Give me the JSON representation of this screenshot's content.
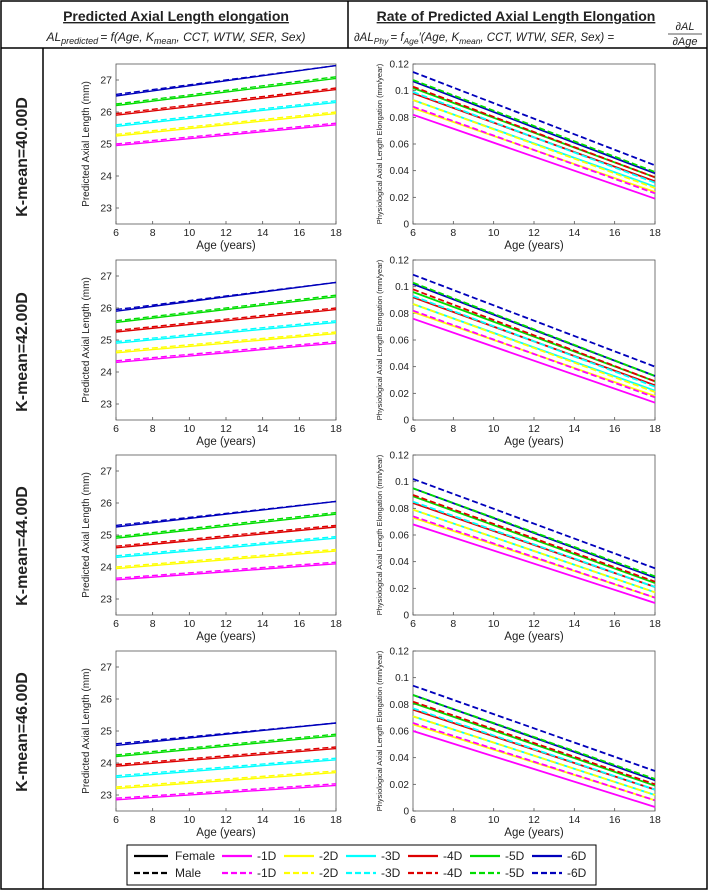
{
  "header": {
    "left_title": "Predicted Axial Length elongation",
    "left_formula": {
      "lhs": "AL",
      "lhs_sub": "predicted",
      "rhs": "= f(Age, K",
      "kmean_sub": "mean",
      "rest": ", CCT, WTW, SER, Sex)"
    },
    "right_title": "Rate of Predicted Axial Length Elongation",
    "right_formula": {
      "lhs": "∂AL",
      "lhs_sub": "Phy",
      "eq": "= f",
      "f_sub": "Age",
      "rest": "′(Age, K",
      "kmean_sub": "mean",
      "rest2": ", CCT, WTW, SER, Sex) =",
      "frac_num": "∂AL",
      "frac_den": "∂Age"
    }
  },
  "rows": [
    {
      "label": "K-mean=40.00D"
    },
    {
      "label": "K-mean=42.00D"
    },
    {
      "label": "K-mean=44.00D"
    },
    {
      "label": "K-mean=46.00D"
    }
  ],
  "legend": {
    "female_label": "Female",
    "male_label": "Male",
    "series_labels": [
      "-1D",
      "-2D",
      "-3D",
      "-4D",
      "-5D",
      "-6D"
    ],
    "colors": [
      "#ff00ff",
      "#ffff00",
      "#00ffff",
      "#dd0000",
      "#00dd00",
      "#0000bb"
    ]
  },
  "chart_data": [
    {
      "type": "line",
      "panel": "axial-length",
      "xlabel": "Age (years)",
      "ylabel": "Predicted Axial Length (mm)",
      "xlim": [
        6,
        18
      ],
      "ylim": [
        22.5,
        27.5
      ],
      "xticks": [
        6,
        8,
        10,
        12,
        14,
        16,
        18
      ],
      "yticks": [
        23,
        24,
        25,
        26,
        27
      ],
      "x": [
        6,
        18
      ],
      "female": [
        [
          24.95,
          25.6
        ],
        [
          25.25,
          25.95
        ],
        [
          25.55,
          26.3
        ],
        [
          25.9,
          26.7
        ],
        [
          26.2,
          27.05
        ],
        [
          26.5,
          27.45
        ]
      ],
      "male": [
        [
          25.0,
          25.65
        ],
        [
          25.3,
          26.0
        ],
        [
          25.6,
          26.35
        ],
        [
          25.95,
          26.75
        ],
        [
          26.25,
          27.1
        ],
        [
          26.55,
          27.45
        ]
      ]
    },
    {
      "type": "line",
      "panel": "elongation-rate",
      "xlabel": "Age (years)",
      "ylabel": "Physiological Axial Length Elongation (mm/year)",
      "xlim": [
        6,
        18
      ],
      "ylim": [
        0,
        0.12
      ],
      "xticks": [
        6,
        8,
        10,
        12,
        14,
        16,
        18
      ],
      "yticks": [
        0,
        0.02,
        0.04,
        0.06,
        0.08,
        0.1,
        0.12
      ],
      "x": [
        6,
        18
      ],
      "female": [
        [
          0.082,
          0.019
        ],
        [
          0.087,
          0.024
        ],
        [
          0.093,
          0.028
        ],
        [
          0.098,
          0.032
        ],
        [
          0.102,
          0.035
        ],
        [
          0.107,
          0.038
        ]
      ],
      "male": [
        [
          0.088,
          0.023
        ],
        [
          0.093,
          0.027
        ],
        [
          0.099,
          0.031
        ],
        [
          0.103,
          0.035
        ],
        [
          0.108,
          0.039
        ],
        [
          0.114,
          0.044
        ]
      ]
    },
    {
      "type": "line",
      "panel": "axial-length",
      "xlabel": "Age (years)",
      "ylabel": "Predicted Axial Length (mm)",
      "xlim": [
        6,
        18
      ],
      "ylim": [
        22.5,
        27.5
      ],
      "xticks": [
        6,
        8,
        10,
        12,
        14,
        16,
        18
      ],
      "yticks": [
        23,
        24,
        25,
        26,
        27
      ],
      "x": [
        6,
        18
      ],
      "female": [
        [
          24.3,
          24.9
        ],
        [
          24.6,
          25.2
        ],
        [
          24.9,
          25.55
        ],
        [
          25.25,
          25.95
        ],
        [
          25.55,
          26.35
        ],
        [
          25.9,
          26.8
        ]
      ],
      "male": [
        [
          24.35,
          24.95
        ],
        [
          24.65,
          25.25
        ],
        [
          24.95,
          25.6
        ],
        [
          25.3,
          26.0
        ],
        [
          25.6,
          26.4
        ],
        [
          25.95,
          26.8
        ]
      ]
    },
    {
      "type": "line",
      "panel": "elongation-rate",
      "xlabel": "Age (years)",
      "ylabel": "Physiological Axial Length Elongation (mm/year)",
      "xlim": [
        6,
        18
      ],
      "ylim": [
        0,
        0.12
      ],
      "xticks": [
        6,
        8,
        10,
        12,
        14,
        16,
        18
      ],
      "yticks": [
        0,
        0.02,
        0.04,
        0.06,
        0.08,
        0.1,
        0.12
      ],
      "x": [
        6,
        18
      ],
      "female": [
        [
          0.076,
          0.013
        ],
        [
          0.081,
          0.018
        ],
        [
          0.087,
          0.022
        ],
        [
          0.092,
          0.026
        ],
        [
          0.096,
          0.029
        ],
        [
          0.102,
          0.033
        ]
      ],
      "male": [
        [
          0.082,
          0.017
        ],
        [
          0.087,
          0.021
        ],
        [
          0.093,
          0.025
        ],
        [
          0.098,
          0.029
        ],
        [
          0.103,
          0.033
        ],
        [
          0.109,
          0.04
        ]
      ]
    },
    {
      "type": "line",
      "panel": "axial-length",
      "xlabel": "Age (years)",
      "ylabel": "Predicted Axial Length (mm)",
      "xlim": [
        6,
        18
      ],
      "ylim": [
        22.5,
        27.5
      ],
      "xticks": [
        6,
        8,
        10,
        12,
        14,
        16,
        18
      ],
      "yticks": [
        23,
        24,
        25,
        26,
        27
      ],
      "x": [
        6,
        18
      ],
      "female": [
        [
          23.6,
          24.1
        ],
        [
          23.95,
          24.5
        ],
        [
          24.3,
          24.9
        ],
        [
          24.6,
          25.25
        ],
        [
          24.9,
          25.65
        ],
        [
          25.25,
          26.05
        ]
      ],
      "male": [
        [
          23.65,
          24.15
        ],
        [
          24.0,
          24.55
        ],
        [
          24.35,
          24.95
        ],
        [
          24.65,
          25.3
        ],
        [
          24.95,
          25.7
        ],
        [
          25.3,
          26.05
        ]
      ]
    },
    {
      "type": "line",
      "panel": "elongation-rate",
      "xlabel": "Age (years)",
      "ylabel": "Physiological Axial Length Elongation (mm/year)",
      "xlim": [
        6,
        18
      ],
      "ylim": [
        0,
        0.12
      ],
      "xticks": [
        6,
        8,
        10,
        12,
        14,
        16,
        18
      ],
      "yticks": [
        0,
        0.02,
        0.04,
        0.06,
        0.08,
        0.1,
        0.12
      ],
      "x": [
        6,
        18
      ],
      "female": [
        [
          0.068,
          0.009
        ],
        [
          0.073,
          0.013
        ],
        [
          0.079,
          0.017
        ],
        [
          0.084,
          0.021
        ],
        [
          0.089,
          0.024
        ],
        [
          0.095,
          0.028
        ]
      ],
      "male": [
        [
          0.074,
          0.013
        ],
        [
          0.079,
          0.017
        ],
        [
          0.085,
          0.021
        ],
        [
          0.09,
          0.025
        ],
        [
          0.095,
          0.029
        ],
        [
          0.102,
          0.035
        ]
      ]
    },
    {
      "type": "line",
      "panel": "axial-length",
      "xlabel": "Age (years)",
      "ylabel": "Predicted Axial Length (mm)",
      "xlim": [
        6,
        18
      ],
      "ylim": [
        22.5,
        27.5
      ],
      "xticks": [
        6,
        8,
        10,
        12,
        14,
        16,
        18
      ],
      "yticks": [
        23,
        24,
        25,
        26,
        27
      ],
      "x": [
        6,
        18
      ],
      "female": [
        [
          22.85,
          23.3
        ],
        [
          23.2,
          23.7
        ],
        [
          23.55,
          24.1
        ],
        [
          23.9,
          24.45
        ],
        [
          24.2,
          24.85
        ],
        [
          24.55,
          25.25
        ]
      ],
      "male": [
        [
          22.9,
          23.35
        ],
        [
          23.25,
          23.75
        ],
        [
          23.6,
          24.15
        ],
        [
          23.95,
          24.5
        ],
        [
          24.25,
          24.9
        ],
        [
          24.6,
          25.25
        ]
      ]
    },
    {
      "type": "line",
      "panel": "elongation-rate",
      "xlabel": "Age (years)",
      "ylabel": "Physiological Axial Length Elongation (mm/year)",
      "xlim": [
        6,
        18
      ],
      "ylim": [
        0,
        0.12
      ],
      "xticks": [
        6,
        8,
        10,
        12,
        14,
        16,
        18
      ],
      "yticks": [
        0,
        0.02,
        0.04,
        0.06,
        0.08,
        0.1,
        0.12
      ],
      "x": [
        6,
        18
      ],
      "female": [
        [
          0.06,
          0.003
        ],
        [
          0.065,
          0.008
        ],
        [
          0.071,
          0.012
        ],
        [
          0.076,
          0.016
        ],
        [
          0.081,
          0.019
        ],
        [
          0.087,
          0.023
        ]
      ],
      "male": [
        [
          0.066,
          0.008
        ],
        [
          0.071,
          0.012
        ],
        [
          0.077,
          0.016
        ],
        [
          0.082,
          0.02
        ],
        [
          0.087,
          0.024
        ],
        [
          0.094,
          0.03
        ]
      ]
    }
  ]
}
